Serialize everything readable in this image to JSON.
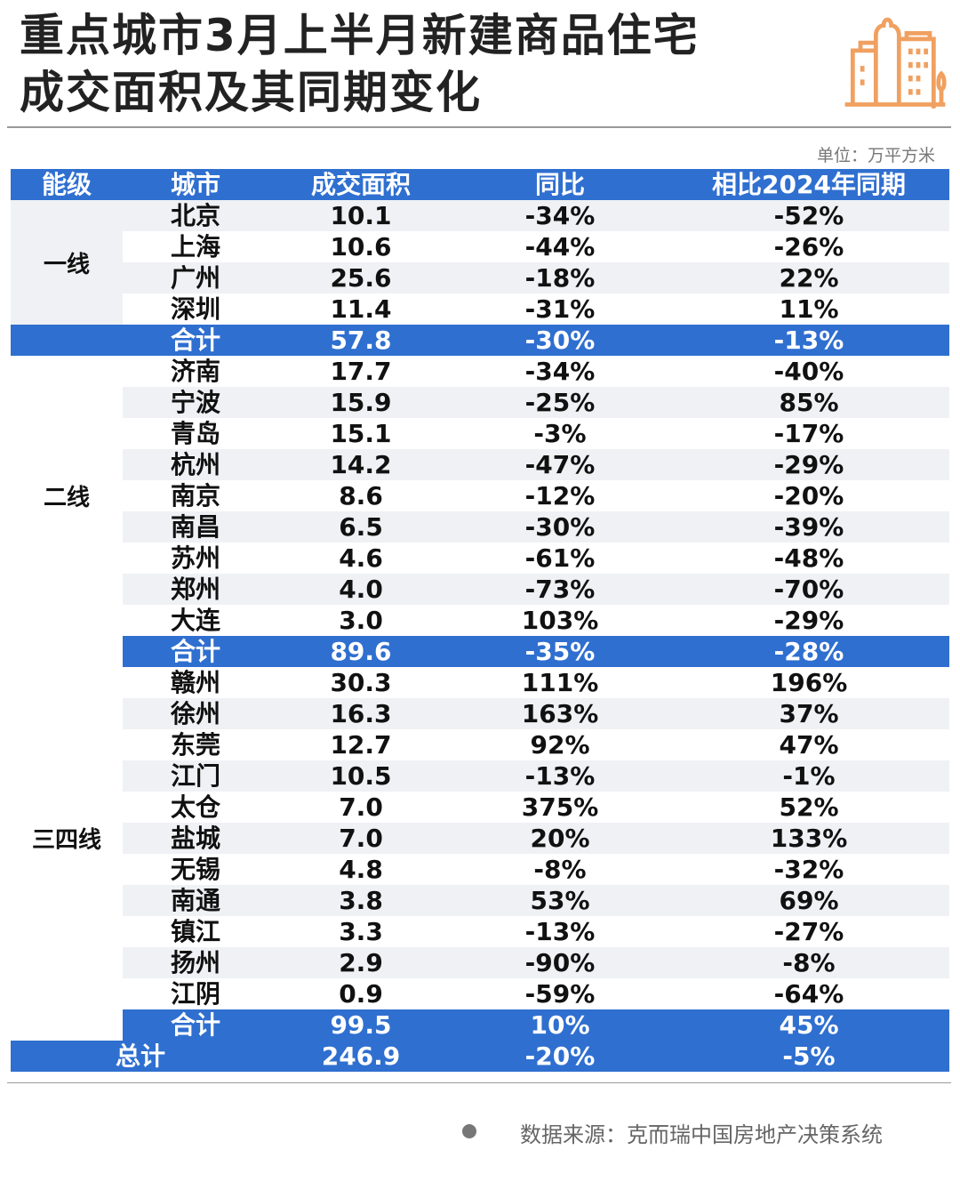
{
  "title_line1": "重点城市3月上半月新建商品住宅",
  "title_line2": "成交面积及其同期变化",
  "unit": "单位：万平方米",
  "colors": {
    "header": "#2f6fd0",
    "stripe": "#eff1f4",
    "icon": "#f0a060"
  },
  "columns": [
    "能级",
    "城市",
    "成交面积",
    "同比",
    "相比2024年同期"
  ],
  "tiers": [
    {
      "name": "一线",
      "rows": [
        [
          "北京",
          "10.1",
          "-34%",
          "-52%"
        ],
        [
          "上海",
          "10.6",
          "-44%",
          "-26%"
        ],
        [
          "广州",
          "25.6",
          "-18%",
          "22%"
        ],
        [
          "深圳",
          "11.4",
          "-31%",
          "11%"
        ]
      ],
      "subtotal": [
        "合计",
        "57.8",
        "-30%",
        "-13%"
      ]
    },
    {
      "name": "二线",
      "rows": [
        [
          "济南",
          "17.7",
          "-34%",
          "-40%"
        ],
        [
          "宁波",
          "15.9",
          "-25%",
          "85%"
        ],
        [
          "青岛",
          "15.1",
          "-3%",
          "-17%"
        ],
        [
          "杭州",
          "14.2",
          "-47%",
          "-29%"
        ],
        [
          "南京",
          "8.6",
          "-12%",
          "-20%"
        ],
        [
          "南昌",
          "6.5",
          "-30%",
          "-39%"
        ],
        [
          "苏州",
          "4.6",
          "-61%",
          "-48%"
        ],
        [
          "郑州",
          "4.0",
          "-73%",
          "-70%"
        ],
        [
          "大连",
          "3.0",
          "103%",
          "-29%"
        ]
      ],
      "subtotal": [
        "合计",
        "89.6",
        "-35%",
        "-28%"
      ]
    },
    {
      "name": "三四线",
      "rows": [
        [
          "赣州",
          "30.3",
          "111%",
          "196%"
        ],
        [
          "徐州",
          "16.3",
          "163%",
          "37%"
        ],
        [
          "东莞",
          "12.7",
          "92%",
          "47%"
        ],
        [
          "江门",
          "10.5",
          "-13%",
          "-1%"
        ],
        [
          "太仓",
          "7.0",
          "375%",
          "52%"
        ],
        [
          "盐城",
          "7.0",
          "20%",
          "133%"
        ],
        [
          "无锡",
          "4.8",
          "-8%",
          "-32%"
        ],
        [
          "南通",
          "3.8",
          "53%",
          "69%"
        ],
        [
          "镇江",
          "3.3",
          "-13%",
          "-27%"
        ],
        [
          "扬州",
          "2.9",
          "-90%",
          "-8%"
        ],
        [
          "江阴",
          "0.9",
          "-59%",
          "-64%"
        ]
      ],
      "subtotal": [
        "合计",
        "99.5",
        "10%",
        "45%"
      ]
    }
  ],
  "total": [
    "总计",
    "246.9",
    "-20%",
    "-5%"
  ],
  "source": "数据来源：克而瑞中国房地产决策系统",
  "icon": "city-buildings-icon"
}
